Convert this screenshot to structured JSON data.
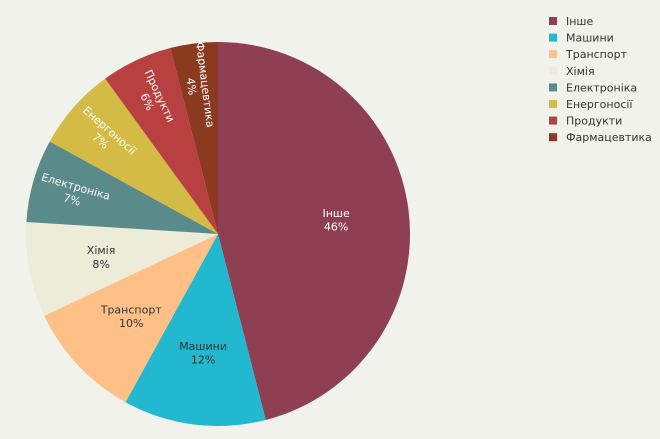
{
  "chart_data": {
    "type": "pie",
    "categories": [
      "Інше",
      "Машини",
      "Транспорт",
      "Хімія",
      "Електроніка",
      "Енергоносії",
      "Продукти",
      "Фармацевтика"
    ],
    "values": [
      46,
      12,
      10,
      8,
      7,
      7,
      6,
      4
    ],
    "value_labels": [
      "46%",
      "12%",
      "10%",
      "8%",
      "7%",
      "7%",
      "6%",
      "4%"
    ],
    "colors": [
      "#8e3f52",
      "#22b8cf",
      "#ffc088",
      "#ececd8",
      "#5b8a8a",
      "#d4bb45",
      "#b94040",
      "#8b3a1f"
    ],
    "label_colors": [
      "#ffffff",
      "#333333",
      "#333333",
      "#333333",
      "#ffffff",
      "#ffffff",
      "#ffffff",
      "#ffffff"
    ],
    "label_style": [
      "horizontal",
      "horizontal",
      "horizontal",
      "horizontal",
      "radial",
      "radial",
      "radial",
      "radial"
    ],
    "start": "top",
    "direction": "clockwise",
    "title": "",
    "legend": {
      "position": "top-right",
      "items": [
        "Інше",
        "Машини",
        "Транспорт",
        "Хімія",
        "Електроніка",
        "Енергоносії",
        "Продукти",
        "Фармацевтика"
      ]
    }
  }
}
